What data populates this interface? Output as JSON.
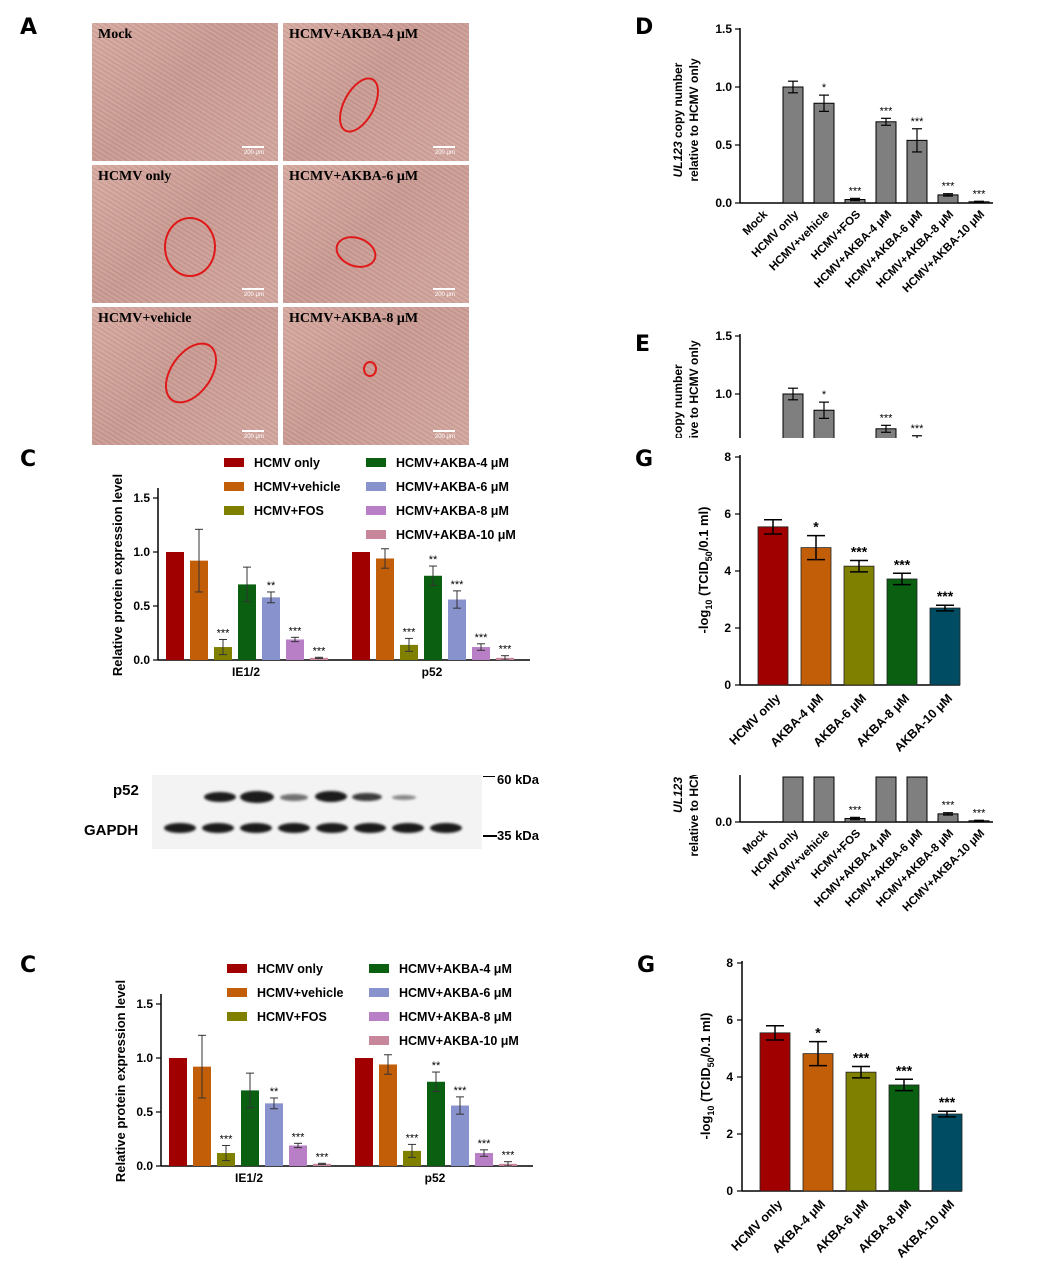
{
  "panels": {
    "A": "A",
    "C": "C",
    "D": "D",
    "E": "E",
    "G": "G"
  },
  "micro": {
    "labels": [
      "Mock",
      "HCMV+AKBA-4 μM",
      "HCMV only",
      "HCMV+AKBA-6 μM",
      "HCMV+vehicle",
      "HCMV+AKBA-8 μM"
    ],
    "scale_bar": "200 μm"
  },
  "western": {
    "p52_label": "p52",
    "gapdh_label": "GAPDH",
    "marker_60": "60 kDa",
    "marker_35": "35 kDa"
  },
  "colors": {
    "HCMV only": "#a00000",
    "HCMV+vehicle": "#c35e08",
    "HCMV+FOS": "#808000",
    "HCMV+AKBA-4 μM": "#0a6010",
    "HCMV+AKBA-6 μM": "#8892cc",
    "HCMV+AKBA-8 μM": "#b97fc6",
    "HCMV+AKBA-10 μM": "#c7869a",
    "AKBA-10 μM": "#004d63",
    "gray": "#7f7f7f"
  },
  "chart_data": [
    {
      "id": "D",
      "type": "bar",
      "ylabel_italic": "UL123",
      "ylabel_rest": " copy number",
      "ylabel2": "relative to HCMV only",
      "categories": [
        "Mock",
        "HCMV only",
        "HCMV+vehicle",
        "HCMV+FOS",
        "HCMV+AKBA-4 μM",
        "HCMV+AKBA-6 μM",
        "HCMV+AKBA-8 μM",
        "HCMV+AKBA-10 μM"
      ],
      "values": [
        0,
        1.0,
        0.86,
        0.03,
        0.7,
        0.54,
        0.07,
        0.01
      ],
      "errors": [
        0,
        0.05,
        0.07,
        0.01,
        0.03,
        0.1,
        0.01,
        0.005
      ],
      "significance": [
        "",
        "",
        "*",
        "***",
        "***",
        "***",
        "***",
        "***"
      ],
      "ylim": [
        0,
        1.5
      ],
      "yticks": [
        "0.0",
        "0.5",
        "1.0",
        "1.5"
      ]
    },
    {
      "id": "C",
      "type": "bar",
      "ylabel": "Relative protein expression level",
      "groups": [
        "IE1/2",
        "p52"
      ],
      "series": [
        {
          "name": "HCMV only",
          "values": [
            1.0,
            1.0
          ],
          "errors": [
            0,
            0
          ],
          "sig": [
            "",
            ""
          ]
        },
        {
          "name": "HCMV+vehicle",
          "values": [
            0.92,
            0.94
          ],
          "errors": [
            0.29,
            0.09
          ],
          "sig": [
            "",
            ""
          ]
        },
        {
          "name": "HCMV+FOS",
          "values": [
            0.12,
            0.14
          ],
          "errors": [
            0.07,
            0.06
          ],
          "sig": [
            "***",
            "***"
          ]
        },
        {
          "name": "HCMV+AKBA-4 μM",
          "values": [
            0.7,
            0.78
          ],
          "errors": [
            0.16,
            0.09
          ],
          "sig": [
            "",
            "**"
          ]
        },
        {
          "name": "HCMV+AKBA-6 μM",
          "values": [
            0.58,
            0.56
          ],
          "errors": [
            0.05,
            0.08
          ],
          "sig": [
            "**",
            "***"
          ]
        },
        {
          "name": "HCMV+AKBA-8 μM",
          "values": [
            0.19,
            0.12
          ],
          "errors": [
            0.02,
            0.03
          ],
          "sig": [
            "***",
            "***"
          ]
        },
        {
          "name": "HCMV+AKBA-10 μM",
          "values": [
            0.02,
            0.02
          ],
          "errors": [
            0.005,
            0.02
          ],
          "sig": [
            "***",
            "***"
          ]
        }
      ],
      "ylim": [
        0,
        1.5
      ],
      "yticks": [
        "0.0",
        "0.5",
        "1.0",
        "1.5"
      ]
    },
    {
      "id": "G",
      "type": "bar",
      "ylabel": "-log10 (TCID50/0.1 ml)",
      "ylabel_a": "-log",
      "ylabel_b": "10",
      "ylabel_c": " (TCID",
      "ylabel_d": "50",
      "ylabel_e": "/0.1 ml)",
      "categories": [
        "HCMV only",
        "AKBA-4 μM",
        "AKBA-6 μM",
        "AKBA-8 μM",
        "AKBA-10 μM"
      ],
      "values": [
        5.55,
        4.82,
        4.17,
        3.72,
        2.7
      ],
      "errors": [
        0.25,
        0.42,
        0.2,
        0.2,
        0.1
      ],
      "significance": [
        "",
        "*",
        "***",
        "***",
        "***"
      ],
      "ylim": [
        0,
        8
      ],
      "yticks": [
        "0",
        "2",
        "4",
        "6",
        "8"
      ]
    }
  ]
}
